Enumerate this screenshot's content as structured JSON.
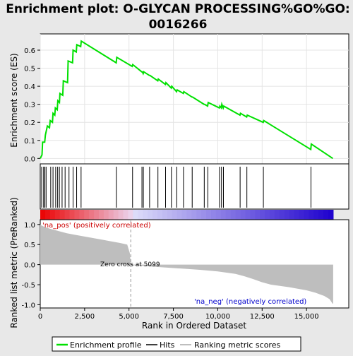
{
  "chart_data": {
    "type": "line",
    "title": "Enrichment plot: O-GLYCAN PROCESSING%GO%GO:\n0016266",
    "xlabel": "Rank in Ordered Dataset",
    "ylabel_top": "Enrichment score (ES)",
    "ylabel_bottom": "Ranked list metric (PreRanked)",
    "xlim": [
      0,
      16500
    ],
    "es_ylim": [
      -0.03,
      0.69
    ],
    "metric_ylim": [
      -1.08,
      1.12
    ],
    "x_ticks": [
      "0",
      "2,500",
      "5,000",
      "7,500",
      "10,000",
      "12,500",
      "15,000"
    ],
    "x_tick_values": [
      0,
      2500,
      5000,
      7500,
      10000,
      12500,
      15000
    ],
    "es_ticks": [
      "0.0",
      "0.1",
      "0.2",
      "0.3",
      "0.4",
      "0.5",
      "0.6"
    ],
    "es_tick_values": [
      0.0,
      0.1,
      0.2,
      0.3,
      0.4,
      0.5,
      0.6
    ],
    "metric_ticks": [
      "1.0",
      "0.5",
      "0.0",
      "-0.5",
      "-1.0"
    ],
    "metric_tick_values": [
      1.0,
      0.5,
      0.0,
      -0.5,
      -1.0
    ],
    "series": [
      {
        "name": "Enrichment profile",
        "color": "#00e000",
        "x": [
          0,
          100,
          130,
          250,
          290,
          400,
          520,
          560,
          690,
          720,
          820,
          850,
          960,
          990,
          1080,
          1110,
          1270,
          1300,
          1540,
          1570,
          1820,
          1850,
          2030,
          2060,
          2280,
          2310,
          4280,
          4310,
          5180,
          5210,
          5720,
          5750,
          5800,
          5830,
          6150,
          6180,
          6620,
          6650,
          7050,
          7080,
          7380,
          7410,
          7680,
          7710,
          8060,
          8090,
          8550,
          8580,
          9230,
          9260,
          9430,
          9460,
          10090,
          10120,
          10200,
          10230,
          10310,
          10340,
          11250,
          11280,
          11630,
          11660,
          12560,
          12590,
          15240,
          15270,
          16480
        ],
        "y": [
          0.0,
          0.02,
          0.09,
          0.09,
          0.13,
          0.18,
          0.17,
          0.21,
          0.2,
          0.25,
          0.24,
          0.28,
          0.27,
          0.32,
          0.31,
          0.36,
          0.35,
          0.43,
          0.42,
          0.54,
          0.53,
          0.6,
          0.59,
          0.63,
          0.62,
          0.65,
          0.53,
          0.56,
          0.51,
          0.52,
          0.48,
          0.48,
          0.47,
          0.48,
          0.46,
          0.46,
          0.43,
          0.44,
          0.41,
          0.42,
          0.39,
          0.4,
          0.37,
          0.38,
          0.36,
          0.37,
          0.34,
          0.34,
          0.3,
          0.3,
          0.29,
          0.31,
          0.28,
          0.29,
          0.28,
          0.3,
          0.28,
          0.29,
          0.24,
          0.25,
          0.23,
          0.24,
          0.2,
          0.21,
          0.05,
          0.08,
          0.0
        ]
      }
    ],
    "hits": [
      80,
      190,
      260,
      330,
      590,
      720,
      870,
      980,
      1080,
      1230,
      1400,
      1620,
      1850,
      2050,
      2300,
      4290,
      5200,
      5730,
      5810,
      6160,
      6630,
      7060,
      7390,
      7690,
      8070,
      8560,
      9240,
      9440,
      10100,
      10210,
      10320,
      11260,
      11640,
      12570,
      15250
    ],
    "metric_curve": {
      "x": [
        0,
        50,
        200,
        500,
        1000,
        1500,
        2000,
        2500,
        3000,
        3500,
        4000,
        4500,
        4900,
        5050,
        5099,
        5150,
        6000,
        7000,
        8000,
        9000,
        10000,
        11000,
        11500,
        12000,
        12500,
        13000,
        14000,
        15000,
        15500,
        16000,
        16300,
        16450,
        16500
      ],
      "y": [
        1.0,
        0.98,
        0.95,
        0.9,
        0.84,
        0.78,
        0.74,
        0.7,
        0.66,
        0.62,
        0.58,
        0.54,
        0.5,
        0.28,
        0.0,
        -0.01,
        -0.04,
        -0.07,
        -0.1,
        -0.13,
        -0.17,
        -0.23,
        -0.29,
        -0.36,
        -0.44,
        -0.5,
        -0.56,
        -0.64,
        -0.7,
        -0.78,
        -0.86,
        -0.96,
        -0.98
      ]
    },
    "zero_cross": 5099,
    "annotations": {
      "pos": "'na_pos' (positively correlated)",
      "neg": "'na_neg' (negatively correlated)",
      "zero": "Zero cross at 5099"
    },
    "legend": {
      "placement": "bottom",
      "items": [
        "Enrichment profile",
        "Hits",
        "Ranking metric scores"
      ]
    },
    "colors": {
      "es_line": "#00e000",
      "metric_fill": "#bebebe",
      "pos_text": "#cc0000",
      "neg_text": "#0000cc",
      "bar_red": "#e00000",
      "bar_blue": "#2200cc"
    }
  }
}
